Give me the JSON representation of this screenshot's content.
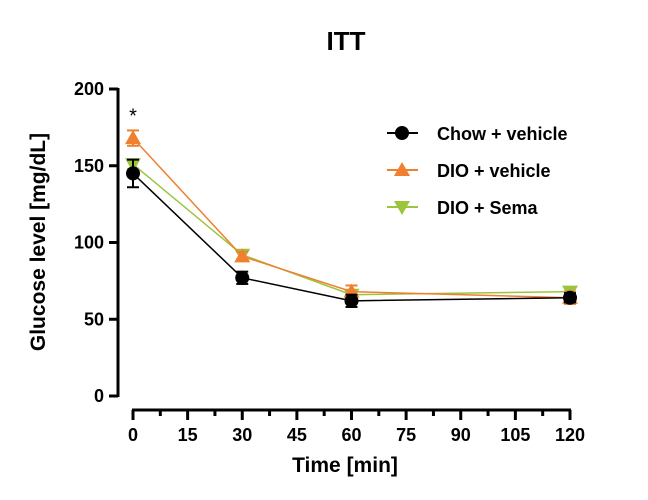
{
  "chart_data": {
    "type": "line",
    "title": "ITT",
    "xlabel": "Time [min]",
    "ylabel": "Glucose level [mg/dL]",
    "xlim": [
      0,
      120
    ],
    "ylim": [
      0,
      200
    ],
    "xticks": [
      "0",
      "15",
      "30",
      "45",
      "60",
      "75",
      "90",
      "105",
      "120"
    ],
    "yticks": [
      "0",
      "50",
      "100",
      "150",
      "200"
    ],
    "legend_position": "top-right",
    "grid": false,
    "annotations": [
      {
        "text": "*",
        "x": 0
      }
    ],
    "x": [
      0,
      30,
      60,
      120
    ],
    "series": [
      {
        "name": "Chow + vehicle",
        "color": "#000000",
        "marker": "circle",
        "values": [
          145,
          77,
          62,
          64
        ],
        "error": [
          9,
          4,
          4,
          3
        ]
      },
      {
        "name": "DIO + vehicle",
        "color": "#f07f2f",
        "marker": "triangle-up",
        "values": [
          168,
          91,
          68,
          64
        ],
        "error": [
          5,
          3,
          4,
          4
        ]
      },
      {
        "name": "DIO + Sema",
        "color": "#9bc53d",
        "marker": "triangle-down",
        "values": [
          151,
          92,
          66,
          68
        ],
        "error": [
          3,
          3,
          2,
          3
        ]
      }
    ]
  }
}
